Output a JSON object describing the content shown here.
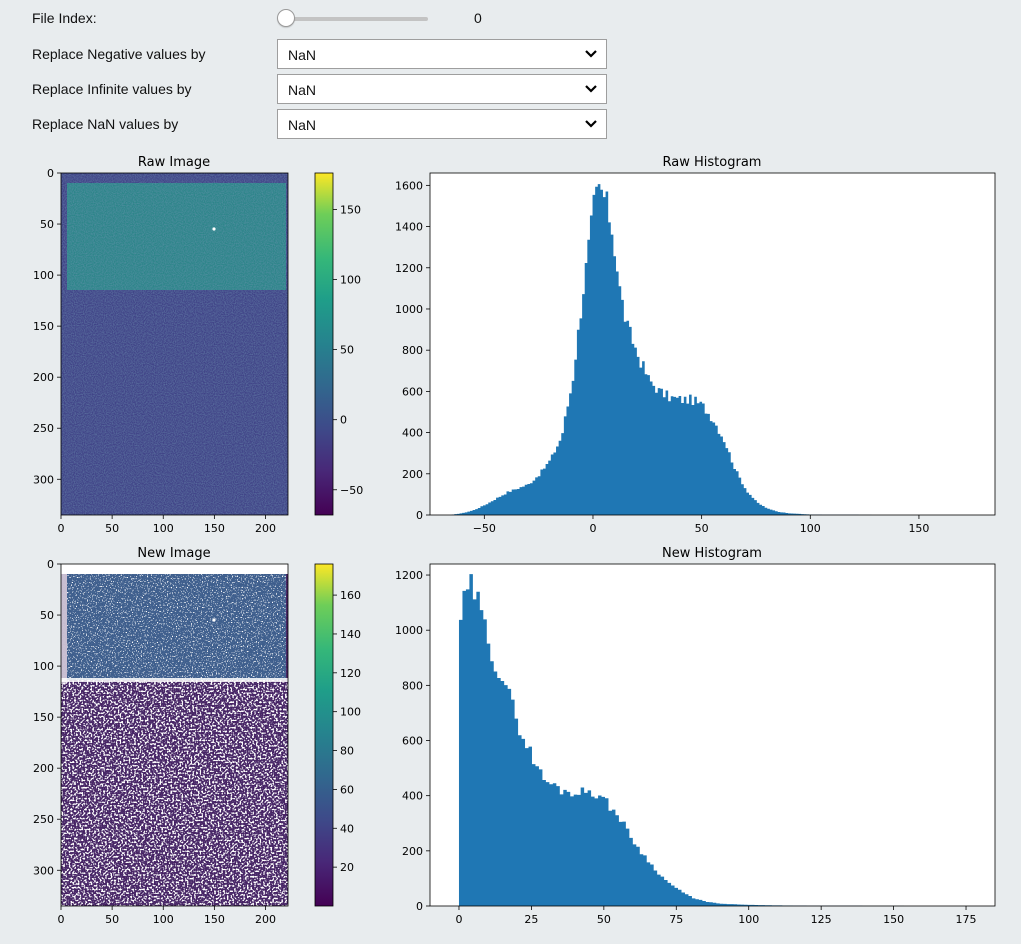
{
  "controls": {
    "file_index": {
      "label": "File Index:",
      "value": "0",
      "fraction": 0.0
    },
    "selects": [
      {
        "label": "Replace Negative values by",
        "value": "NaN"
      },
      {
        "label": "Replace Infinite values by",
        "value": "NaN"
      },
      {
        "label": "Replace NaN values by",
        "value": "NaN"
      }
    ],
    "dropdown_icon": "chevron-down-icon"
  },
  "chart_data": [
    {
      "type": "heatmap",
      "title": "Raw Image",
      "colormap": "viridis",
      "x_ticks": [
        "0",
        "50",
        "100",
        "150",
        "200"
      ],
      "y_ticks": [
        "0",
        "50",
        "100",
        "150",
        "200",
        "250",
        "300"
      ],
      "xlim": [
        0,
        222
      ],
      "ylim": [
        0,
        335
      ],
      "colorbar_ticks": [
        "150",
        "100",
        "50",
        "0",
        "−50"
      ],
      "colorbar_range": [
        -68,
        176
      ]
    },
    {
      "type": "bar",
      "title": "Raw Histogram",
      "xlim": [
        -75,
        185
      ],
      "ylim": [
        0,
        1660
      ],
      "x_ticks": [
        "−50",
        "0",
        "50",
        "100",
        "150"
      ],
      "y_ticks": [
        "0",
        "200",
        "400",
        "600",
        "800",
        "1000",
        "1200",
        "1400",
        "1600"
      ],
      "color": "#1f77b4",
      "x": [
        -65,
        -60,
        -55,
        -50,
        -45,
        -40,
        -35,
        -30,
        -25,
        -20,
        -15,
        -10,
        -5,
        -2,
        0,
        2,
        4,
        6,
        8,
        10,
        12,
        15,
        18,
        20,
        25,
        30,
        35,
        40,
        45,
        50,
        55,
        60,
        65,
        70,
        75,
        80,
        85,
        90,
        95,
        100,
        110,
        120,
        130
      ],
      "values": [
        2,
        10,
        25,
        50,
        80,
        110,
        130,
        150,
        200,
        270,
        380,
        650,
        1100,
        1350,
        1520,
        1580,
        1560,
        1500,
        1400,
        1250,
        1080,
        920,
        840,
        780,
        660,
        600,
        570,
        560,
        560,
        530,
        460,
        360,
        220,
        120,
        60,
        30,
        15,
        8,
        5,
        2,
        1,
        1,
        0
      ]
    },
    {
      "type": "heatmap",
      "title": "New Image",
      "colormap": "viridis",
      "x_ticks": [
        "0",
        "50",
        "100",
        "150",
        "200"
      ],
      "y_ticks": [
        "0",
        "50",
        "100",
        "150",
        "200",
        "250",
        "300"
      ],
      "xlim": [
        0,
        222
      ],
      "ylim": [
        0,
        335
      ],
      "colorbar_ticks": [
        "160",
        "140",
        "120",
        "100",
        "80",
        "60",
        "40",
        "20"
      ],
      "colorbar_range": [
        0,
        176
      ]
    },
    {
      "type": "bar",
      "title": "New Histogram",
      "xlim": [
        -10,
        185
      ],
      "ylim": [
        0,
        1240
      ],
      "x_ticks": [
        "0",
        "25",
        "50",
        "75",
        "100",
        "125",
        "150",
        "175"
      ],
      "y_ticks": [
        "0",
        "200",
        "400",
        "600",
        "800",
        "1000",
        "1200"
      ],
      "color": "#1f77b4",
      "x": [
        0,
        2,
        4,
        6,
        8,
        10,
        12,
        15,
        18,
        20,
        22,
        25,
        28,
        30,
        35,
        40,
        45,
        50,
        55,
        60,
        65,
        70,
        75,
        80,
        85,
        90,
        100,
        110,
        120,
        130,
        160
      ],
      "values": [
        1050,
        1130,
        1160,
        1100,
        1020,
        960,
        880,
        820,
        720,
        660,
        600,
        540,
        470,
        450,
        420,
        410,
        420,
        380,
        320,
        230,
        160,
        100,
        60,
        30,
        15,
        8,
        4,
        2,
        1,
        1,
        0
      ]
    }
  ]
}
